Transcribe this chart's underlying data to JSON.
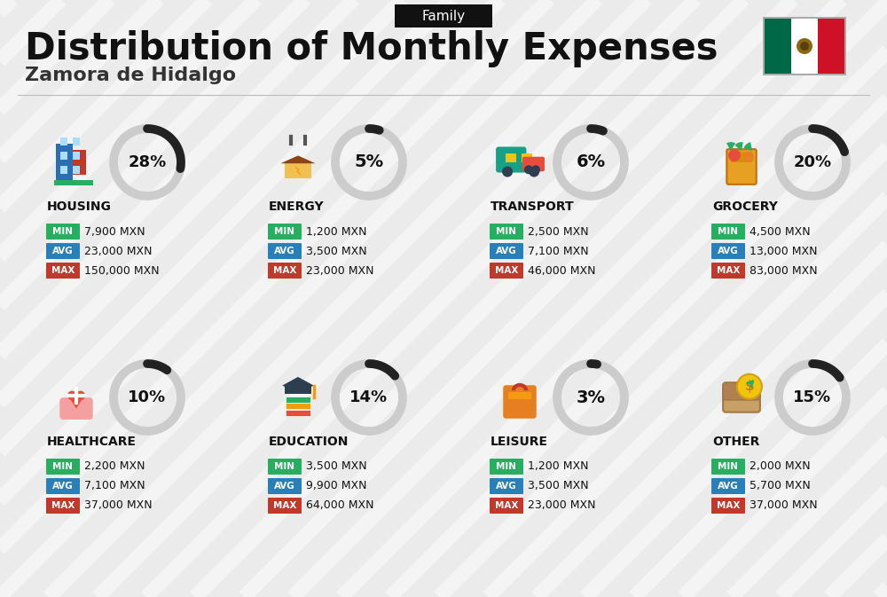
{
  "title": "Distribution of Monthly Expenses",
  "subtitle": "Zamora de Hidalgo",
  "tag": "Family",
  "background_color": "#ebebeb",
  "categories": [
    {
      "name": "HOUSING",
      "percent": 28,
      "min": "7,900 MXN",
      "avg": "23,000 MXN",
      "max": "150,000 MXN",
      "row": 0,
      "col": 0
    },
    {
      "name": "ENERGY",
      "percent": 5,
      "min": "1,200 MXN",
      "avg": "3,500 MXN",
      "max": "23,000 MXN",
      "row": 0,
      "col": 1
    },
    {
      "name": "TRANSPORT",
      "percent": 6,
      "min": "2,500 MXN",
      "avg": "7,100 MXN",
      "max": "46,000 MXN",
      "row": 0,
      "col": 2
    },
    {
      "name": "GROCERY",
      "percent": 20,
      "min": "4,500 MXN",
      "avg": "13,000 MXN",
      "max": "83,000 MXN",
      "row": 0,
      "col": 3
    },
    {
      "name": "HEALTHCARE",
      "percent": 10,
      "min": "2,200 MXN",
      "avg": "7,100 MXN",
      "max": "37,000 MXN",
      "row": 1,
      "col": 0
    },
    {
      "name": "EDUCATION",
      "percent": 14,
      "min": "3,500 MXN",
      "avg": "9,900 MXN",
      "max": "64,000 MXN",
      "row": 1,
      "col": 1
    },
    {
      "name": "LEISURE",
      "percent": 3,
      "min": "1,200 MXN",
      "avg": "3,500 MXN",
      "max": "23,000 MXN",
      "row": 1,
      "col": 2
    },
    {
      "name": "OTHER",
      "percent": 15,
      "min": "2,000 MXN",
      "avg": "5,700 MXN",
      "max": "37,000 MXN",
      "row": 1,
      "col": 3
    }
  ],
  "color_min": "#27ae60",
  "color_avg": "#2980b9",
  "color_max": "#c0392b",
  "color_ring_filled": "#222222",
  "color_ring_empty": "#cccccc",
  "stripe_color": "#ffffff",
  "stripe_alpha": 0.45,
  "stripe_linewidth": 12
}
